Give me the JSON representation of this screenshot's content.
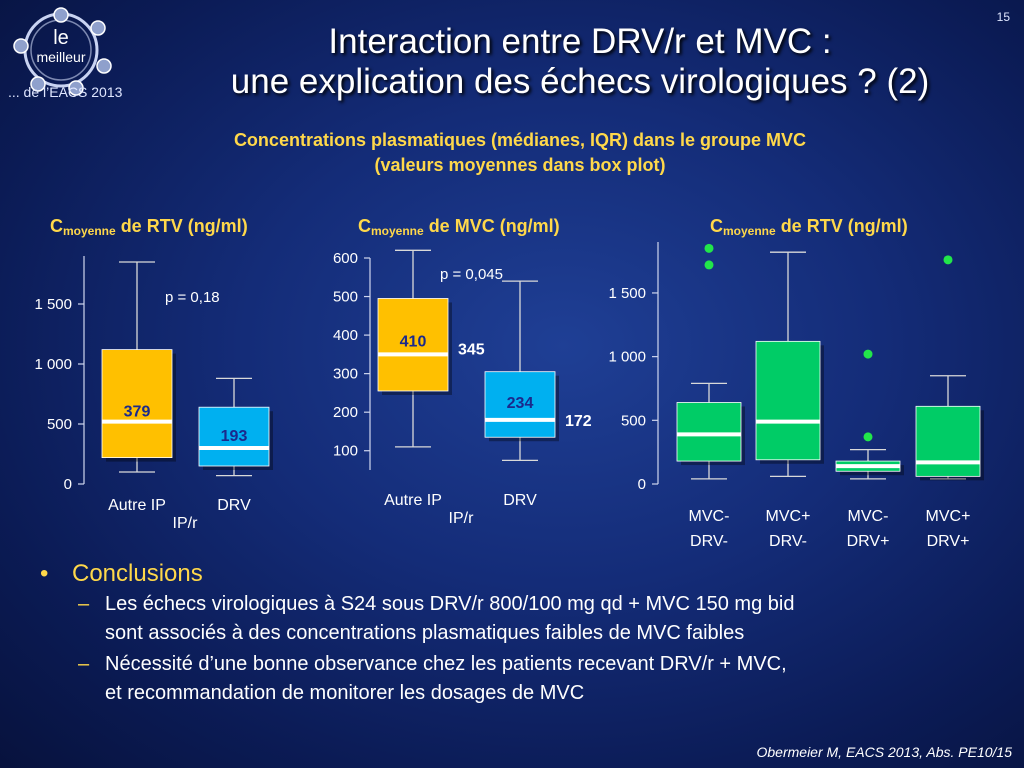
{
  "header": {
    "logo_le": "le",
    "logo_meilleur": "meilleur",
    "logo_tagline": "... de l’EACS 2013",
    "page_number": "15",
    "title_line1": "Interaction entre DRV/r et MVC :",
    "title_line2": "une explication des échecs virologiques ? (2)",
    "subtitle_line1": "Concentrations plasmatiques (médianes, IQR) dans le groupe MVC",
    "subtitle_line2": "(valeurs moyennes dans box plot)"
  },
  "colors": {
    "title_yellow": "#ffd84a",
    "box_orange": "#ffc000",
    "box_blue": "#00b0f0",
    "box_green": "#00cc66",
    "outlier_green": "#22e64a",
    "whisker": "#d9d9d9",
    "median_line": "#ffffff"
  },
  "chart_data": [
    {
      "type": "boxplot",
      "title_prefix": "C",
      "title_sub": "moyenne",
      "title_suffix": " de RTV (ng/ml)",
      "annotation": "p = 0,18",
      "ylim": [
        0,
        1900
      ],
      "yticks": [
        0,
        500,
        1000,
        1500
      ],
      "ytick_labels": [
        "0",
        "500",
        "1 000",
        "1 500"
      ],
      "boxes": [
        {
          "label": "Autre IP",
          "label2": "IP/r",
          "whisker_low": 100,
          "q1": 220,
          "median": 520,
          "q3": 1120,
          "whisker_high": 1850,
          "mean_label": "379",
          "color": "orange"
        },
        {
          "label": "DRV",
          "label2": "",
          "whisker_low": 70,
          "q1": 150,
          "median": 300,
          "q3": 640,
          "whisker_high": 880,
          "mean_label": "193",
          "color": "blue"
        }
      ]
    },
    {
      "type": "boxplot",
      "title_prefix": "C",
      "title_sub": "moyenne",
      "title_suffix": " de MVC (ng/ml)",
      "annotation": "p = 0,045",
      "ylim": [
        50,
        600
      ],
      "yticks": [
        100,
        200,
        300,
        400,
        500,
        600
      ],
      "ytick_labels": [
        "100",
        "200",
        "300",
        "400",
        "500",
        "600"
      ],
      "boxes": [
        {
          "label": "Autre IP",
          "label2": "IP/r",
          "whisker_low": 110,
          "q1": 255,
          "median": 350,
          "q3": 495,
          "whisker_high": 620,
          "mean_label": "410",
          "side_label": "345",
          "color": "orange"
        },
        {
          "label": "DRV",
          "label2": "",
          "whisker_low": 75,
          "q1": 135,
          "median": 180,
          "q3": 305,
          "whisker_high": 540,
          "mean_label": "234",
          "side_label": "172",
          "color": "blue"
        }
      ]
    },
    {
      "type": "boxplot",
      "title_prefix": "C",
      "title_sub": "moyenne",
      "title_suffix": " de RTV (ng/ml)",
      "ylim": [
        0,
        1900
      ],
      "yticks": [
        0,
        500,
        1000,
        1500
      ],
      "ytick_labels": [
        "0",
        "500",
        "1 000",
        "1 500"
      ],
      "boxes": [
        {
          "label": "MVC-",
          "label2": "DRV-",
          "whisker_low": 40,
          "q1": 180,
          "median": 390,
          "q3": 640,
          "whisker_high": 790,
          "outliers": [
            1850,
            1720
          ],
          "color": "green"
        },
        {
          "label": "MVC+",
          "label2": "DRV-",
          "whisker_low": 60,
          "q1": 190,
          "median": 490,
          "q3": 1120,
          "whisker_high": 1820,
          "outliers": [],
          "color": "green"
        },
        {
          "label": "MVC-",
          "label2": "DRV+",
          "whisker_low": 40,
          "q1": 100,
          "median": 140,
          "q3": 180,
          "whisker_high": 270,
          "outliers": [
            1020,
            370
          ],
          "color": "green"
        },
        {
          "label": "MVC+",
          "label2": "DRV+",
          "whisker_low": 40,
          "q1": 60,
          "median": 170,
          "q3": 610,
          "whisker_high": 850,
          "outliers": [
            1760
          ],
          "color": "green"
        }
      ]
    }
  ],
  "conclusions": {
    "heading": "Conclusions",
    "items": [
      {
        "line1": "Les échecs virologiques à S24 sous DRV/r 800/100 mg qd + MVC 150 mg bid",
        "line2": "sont associés à des concentrations plasmatiques faibles de MVC faibles"
      },
      {
        "line1": "Nécessité d’une bonne observance chez les patients recevant DRV/r + MVC,",
        "line2": "et recommandation de monitorer les dosages de MVC"
      }
    ]
  },
  "citation": "Obermeier M, EACS 2013, Abs. PE10/15"
}
